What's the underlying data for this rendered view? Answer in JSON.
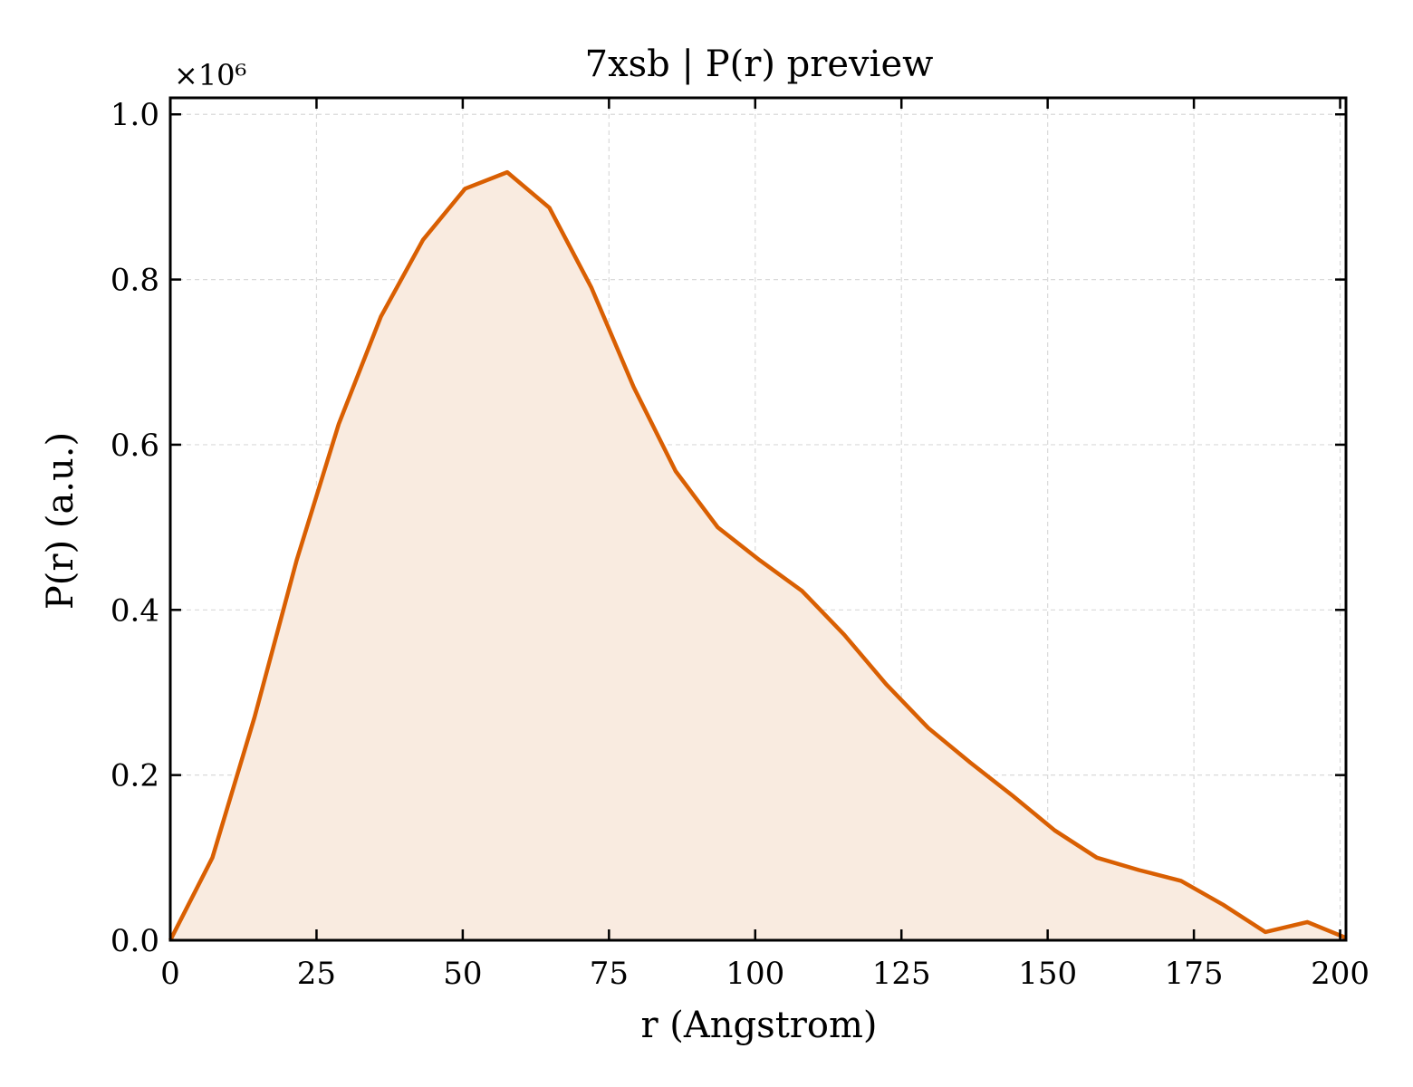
{
  "chart_data": {
    "type": "area",
    "title": "7xsb | P(r) preview",
    "xlabel": "r (Angstrom)",
    "ylabel": "P(r) (a.u.)",
    "y_multiplier_label": "×10⁶",
    "xlim": [
      0,
      201
    ],
    "ylim": [
      0,
      1.02
    ],
    "grid": true,
    "x_ticks": [
      0,
      25,
      50,
      75,
      100,
      125,
      150,
      175,
      200
    ],
    "x_tick_labels": [
      "0",
      "25",
      "50",
      "75",
      "100",
      "125",
      "150",
      "175",
      "200"
    ],
    "y_ticks": [
      0.0,
      0.2,
      0.4,
      0.6,
      0.8,
      1.0
    ],
    "y_tick_labels": [
      "0.0",
      "0.2",
      "0.4",
      "0.6",
      "0.8",
      "1.0"
    ],
    "series": [
      {
        "color": "#d95f02",
        "fill_color": "#f9ebe0",
        "x": [
          0,
          7.2,
          14.4,
          21.6,
          28.8,
          36.0,
          43.2,
          50.4,
          57.6,
          64.8,
          72.0,
          79.2,
          86.4,
          93.6,
          100.8,
          108.0,
          115.2,
          122.4,
          129.6,
          136.8,
          144.0,
          151.2,
          158.4,
          165.6,
          172.8,
          180.0,
          187.2,
          194.4,
          201.0
        ],
        "y": [
          0.0,
          0.1,
          0.27,
          0.46,
          0.625,
          0.755,
          0.848,
          0.91,
          0.93,
          0.887,
          0.79,
          0.67,
          0.568,
          0.5,
          0.46,
          0.423,
          0.37,
          0.31,
          0.257,
          0.215,
          0.175,
          0.133,
          0.1,
          0.085,
          0.072,
          0.043,
          0.01,
          0.022,
          0.003
        ]
      }
    ]
  }
}
